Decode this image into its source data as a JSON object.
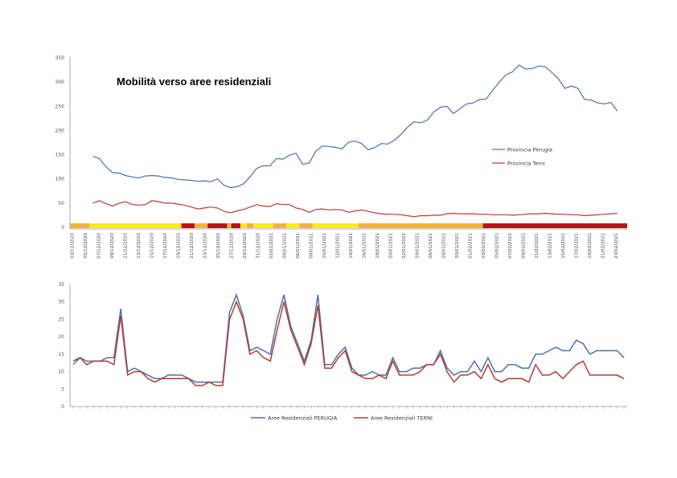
{
  "chart_data": [
    {
      "type": "line",
      "title": "Mobilità verso aree residenziali",
      "ylim": [
        0,
        350
      ],
      "yticks": [
        "0",
        "50",
        "100",
        "150",
        "200",
        "250",
        "300",
        "350"
      ],
      "grid": false,
      "legend_position": "right",
      "date_labels": [
        "03/12/2020",
        "05/12/2020",
        "07/12/2020",
        "09/12/2020",
        "11/12/2020",
        "13/12/2020",
        "15/12/2020",
        "17/12/2020",
        "19/12/2020",
        "21/12/2020",
        "23/12/2020",
        "25/12/2020",
        "27/12/2020",
        "29/12/2020",
        "31/12/2020",
        "02/01/2021",
        "04/01/2021",
        "06/01/2021",
        "08/01/2021",
        "10/01/2021",
        "12/01/2021",
        "14/01/2021",
        "16/01/2021",
        "18/01/2021",
        "20/01/2021",
        "22/01/2021",
        "24/01/2021",
        "26/01/2021",
        "28/01/2021",
        "30/01/2021",
        "01/02/2021",
        "03/02/2021",
        "05/02/2021",
        "07/02/2021",
        "09/02/2021",
        "11/02/2021",
        "13/02/2021",
        "15/02/2021",
        "17/02/2021",
        "19/02/2021",
        "21/02/2021",
        "23/02/2021"
      ],
      "zone_band": [
        {
          "from": 0,
          "to": 3,
          "color": "#f4b23a"
        },
        {
          "from": 3,
          "to": 17,
          "color": "#f6f00f"
        },
        {
          "from": 17,
          "to": 19,
          "color": "#c0101a"
        },
        {
          "from": 19,
          "to": 21,
          "color": "#f4b23a"
        },
        {
          "from": 21,
          "to": 24,
          "color": "#c0101a"
        },
        {
          "from": 24,
          "to": 24.6,
          "color": "#f4b23a"
        },
        {
          "from": 24.6,
          "to": 26,
          "color": "#c0101a"
        },
        {
          "from": 26,
          "to": 27,
          "color": "#f6f00f"
        },
        {
          "from": 27,
          "to": 28,
          "color": "#f4b23a"
        },
        {
          "from": 28,
          "to": 31,
          "color": "#f6f00f"
        },
        {
          "from": 31,
          "to": 33,
          "color": "#f4b23a"
        },
        {
          "from": 33,
          "to": 35,
          "color": "#f6f00f"
        },
        {
          "from": 35,
          "to": 37,
          "color": "#f4b23a"
        },
        {
          "from": 37,
          "to": 44,
          "color": "#f6f00f"
        },
        {
          "from": 44,
          "to": 63,
          "color": "#f4b23a"
        },
        {
          "from": 63,
          "to": 85,
          "color": "#c0101a"
        }
      ],
      "series": [
        {
          "name": "Provincia Perugia",
          "color": "#4a72a8",
          "start_index": 3,
          "values": [
            147,
            142,
            125,
            113,
            112,
            107,
            104,
            102,
            106,
            107,
            106,
            103,
            102,
            99,
            98,
            97,
            95,
            96,
            94,
            100,
            87,
            82,
            84,
            90,
            105,
            122,
            127,
            127,
            142,
            141,
            149,
            153,
            130,
            133,
            157,
            168,
            167,
            165,
            162,
            176,
            178,
            173,
            160,
            165,
            173,
            172,
            180,
            192,
            207,
            218,
            216,
            221,
            238,
            248,
            250,
            235,
            245,
            255,
            257,
            264,
            265,
            283,
            300,
            315,
            321,
            335,
            327,
            328,
            333,
            332,
            320,
            307,
            287,
            292,
            287,
            264,
            263,
            257,
            255,
            258,
            240
          ]
        },
        {
          "name": "Provincia Terni",
          "color": "#b83a34",
          "start_index": 3,
          "values": [
            50,
            55,
            49,
            44,
            50,
            53,
            47,
            46,
            47,
            55,
            53,
            50,
            50,
            48,
            46,
            42,
            38,
            40,
            42,
            40,
            33,
            30,
            34,
            37,
            42,
            47,
            44,
            43,
            49,
            47,
            47,
            40,
            37,
            31,
            37,
            38,
            36,
            37,
            36,
            31,
            34,
            36,
            33,
            30,
            28,
            27,
            27,
            26,
            24,
            22,
            24,
            24,
            25,
            25,
            28,
            29,
            28,
            28,
            28,
            27,
            27,
            26,
            26,
            26,
            25,
            26,
            27,
            28,
            28,
            29,
            28,
            27,
            27,
            26,
            26,
            24,
            25,
            26,
            27,
            28,
            29
          ]
        }
      ]
    },
    {
      "type": "line",
      "ylim": [
        0,
        35
      ],
      "yticks": [
        "0",
        "5",
        "10",
        "15",
        "20",
        "25",
        "30",
        "35"
      ],
      "grid": false,
      "legend_position": "bottom",
      "series": [
        {
          "name": "Aree Residenziali PERUGIA",
          "color": "#4a72a8",
          "values": [
            12,
            14,
            13,
            13,
            13,
            14,
            14,
            28,
            10,
            11,
            10,
            9,
            8,
            8,
            9,
            9,
            9,
            8,
            7,
            7,
            7,
            7,
            7,
            27,
            32,
            26,
            16,
            17,
            16,
            15,
            25,
            32,
            23,
            18,
            13,
            19,
            32,
            12,
            12,
            15,
            17,
            11,
            9,
            9,
            10,
            9,
            9,
            14,
            10,
            10,
            11,
            11,
            12,
            12,
            16,
            11,
            9,
            10,
            10,
            13,
            10,
            14,
            10,
            10,
            12,
            12,
            11,
            11,
            15,
            15,
            16,
            17,
            16,
            16,
            19,
            18,
            15,
            16,
            16,
            16,
            16,
            14
          ]
        },
        {
          "name": "Aree Residenziali TERNI",
          "color": "#b83a34",
          "values": [
            13,
            14,
            12,
            13,
            13,
            13,
            12,
            26,
            9,
            10,
            10,
            8,
            7,
            8,
            8,
            8,
            8,
            8,
            6,
            6,
            7,
            6,
            6,
            25,
            30,
            25,
            15,
            16,
            14,
            13,
            22,
            30,
            22,
            17,
            12,
            18,
            29,
            11,
            11,
            14,
            16,
            10,
            9,
            8,
            8,
            9,
            8,
            13,
            9,
            9,
            9,
            10,
            12,
            12,
            15,
            10,
            7,
            9,
            9,
            10,
            8,
            12,
            8,
            7,
            8,
            8,
            8,
            7,
            12,
            9,
            9,
            10,
            8,
            10,
            12,
            13,
            9,
            9,
            9,
            9,
            9,
            8
          ]
        }
      ]
    }
  ]
}
